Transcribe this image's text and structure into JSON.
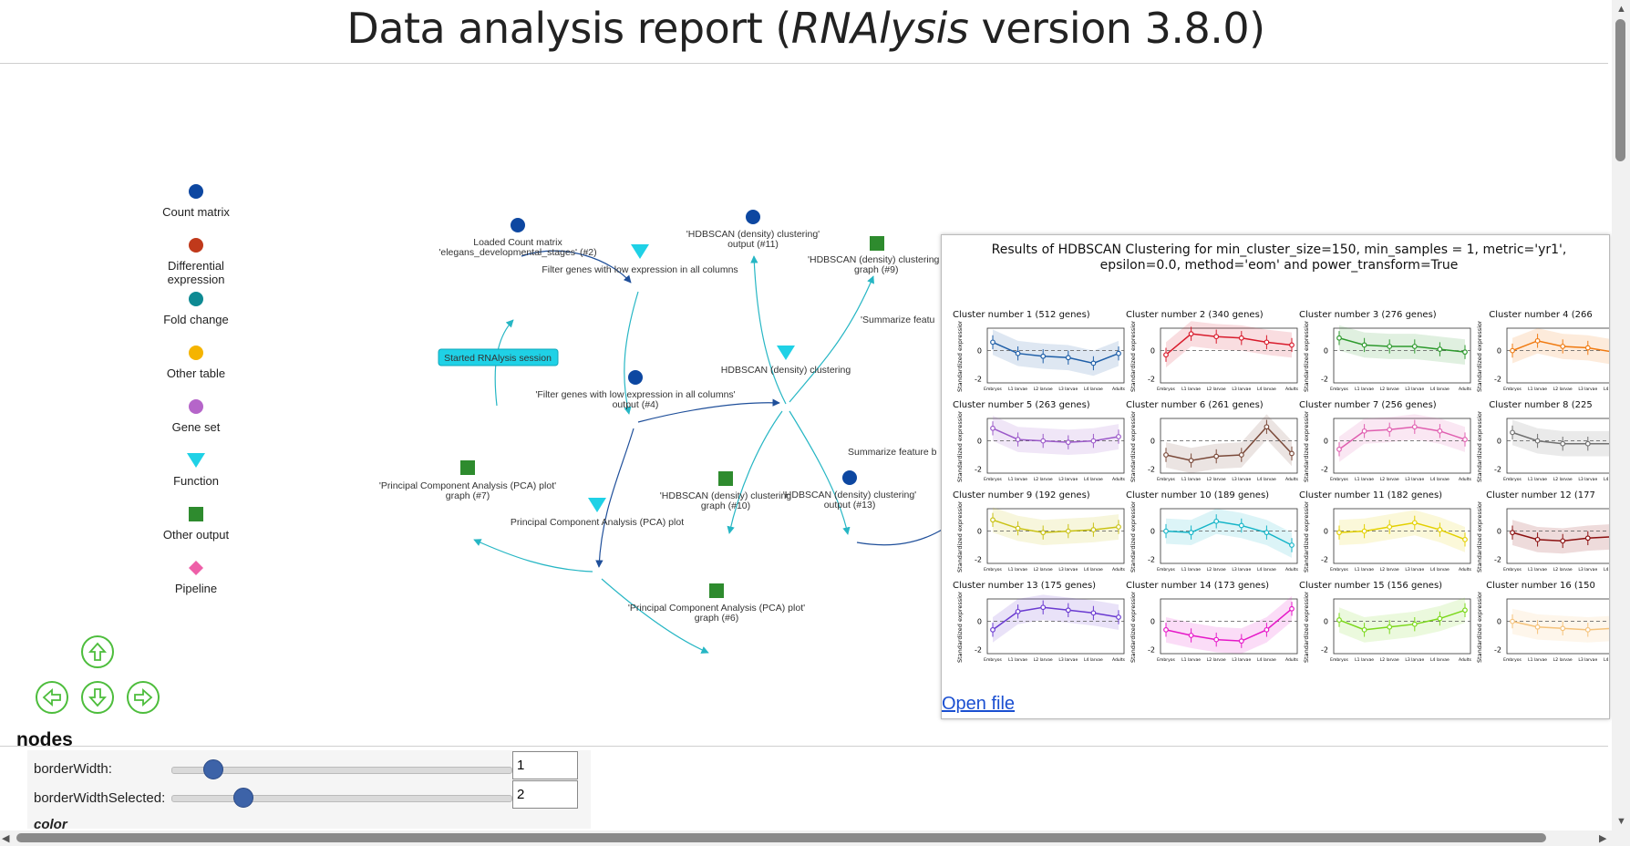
{
  "title": {
    "prefix": "Data analysis report (",
    "app": "RNAlysis",
    "suffix": " version 3.8.0)"
  },
  "legend": [
    {
      "label": "Count matrix",
      "shape": "circle",
      "color": "#0d47a1"
    },
    {
      "label": "Differential expression",
      "shape": "circle",
      "color": "#c0391b"
    },
    {
      "label": "Fold change",
      "shape": "circle",
      "color": "#0e8a93"
    },
    {
      "label": "Other table",
      "shape": "circle",
      "color": "#f5b400"
    },
    {
      "label": "Gene set",
      "shape": "circle",
      "color": "#b565c9"
    },
    {
      "label": "Function",
      "shape": "triangle",
      "color": "#1fd1e6"
    },
    {
      "label": "Other output",
      "shape": "square",
      "color": "#2e8b2e"
    },
    {
      "label": "Pipeline",
      "shape": "diamond",
      "color": "#ee5fa8"
    }
  ],
  "graph": {
    "session_node": "Started RNAlysis session",
    "nodes": [
      {
        "id": "n2",
        "line1": "Loaded Count matrix",
        "line2": "'elegans_developmental_stages' (#2)"
      },
      {
        "id": "f1",
        "line1": "Filter genes with low expression in all columns",
        "line2": ""
      },
      {
        "id": "n4",
        "line1": "'Filter genes with low expression in all columns'",
        "line2": "output (#4)"
      },
      {
        "id": "n11",
        "line1": "'HDBSCAN (density) clustering'",
        "line2": "output (#11)"
      },
      {
        "id": "n9",
        "line1": "'HDBSCAN (density) clustering",
        "line2": "graph (#9)"
      },
      {
        "id": "f2",
        "line1": "HDBSCAN (density) clustering",
        "line2": ""
      },
      {
        "id": "s1",
        "line1": "'Summarize featu",
        "line2": ""
      },
      {
        "id": "s2",
        "line1": "Summarize feature b",
        "line2": ""
      },
      {
        "id": "n7",
        "line1": "'Principal Component Analysis (PCA) plot'",
        "line2": "graph (#7)"
      },
      {
        "id": "f3",
        "line1": "Principal Component Analysis (PCA) plot",
        "line2": ""
      },
      {
        "id": "n10",
        "line1": "'HDBSCAN (density) clustering",
        "line2": "graph (#10)"
      },
      {
        "id": "n13",
        "line1": "'HDBSCAN (density) clustering'",
        "line2": "output (#13)"
      },
      {
        "id": "n6",
        "line1": "'Principal Component Analysis (PCA) plot'",
        "line2": "graph (#6)"
      }
    ]
  },
  "popup": {
    "title_line1": "Results of HDBSCAN Clustering for min_cluster_size=150, min_samples = 1, metric='yr1',",
    "title_line2": "epsilon=0.0, method='eom' and power_transform=True",
    "ylabel": "Standardized expression",
    "x_categories": [
      "Embryos",
      "L1 larvae",
      "L2 larvae",
      "L3 larvae",
      "L4 larvae",
      "Adults"
    ],
    "clusters": [
      {
        "title": "Cluster number 1 (512 genes)",
        "color": "#1f5fa8",
        "values": [
          0.6,
          -0.2,
          -0.4,
          -0.5,
          -0.9,
          -0.2
        ]
      },
      {
        "title": "Cluster number 2 (340 genes)",
        "color": "#d81b2c",
        "values": [
          -0.3,
          1.2,
          1.0,
          0.9,
          0.6,
          0.4
        ]
      },
      {
        "title": "Cluster number 3 (276 genes)",
        "color": "#2e9a2e",
        "values": [
          0.9,
          0.4,
          0.3,
          0.3,
          0.1,
          -0.1
        ]
      },
      {
        "title": "Cluster number 4 (266",
        "color": "#f07a10",
        "values": [
          0.0,
          0.7,
          0.3,
          0.2,
          -0.1,
          -0.1
        ]
      },
      {
        "title": "Cluster number 5 (263 genes)",
        "color": "#9b59c9",
        "values": [
          0.9,
          0.1,
          0.0,
          -0.1,
          0.0,
          0.3
        ]
      },
      {
        "title": "Cluster number 6 (261 genes)",
        "color": "#7b4a3a",
        "values": [
          -1.0,
          -1.4,
          -1.1,
          -1.0,
          1.0,
          -0.9
        ]
      },
      {
        "title": "Cluster number 7 (256 genes)",
        "color": "#e05fb0",
        "values": [
          -0.6,
          0.7,
          0.8,
          1.0,
          0.7,
          0.1
        ]
      },
      {
        "title": "Cluster number 8 (225",
        "color": "#707070",
        "values": [
          0.6,
          0.0,
          -0.2,
          -0.2,
          -0.2,
          -0.2
        ]
      },
      {
        "title": "Cluster number 9 (192 genes)",
        "color": "#c9c215",
        "values": [
          0.8,
          0.2,
          -0.1,
          0.0,
          0.1,
          0.3
        ]
      },
      {
        "title": "Cluster number 10 (189 genes)",
        "color": "#16b5c8",
        "values": [
          0.0,
          -0.1,
          0.7,
          0.4,
          -0.1,
          -1.0
        ]
      },
      {
        "title": "Cluster number 11 (182 genes)",
        "color": "#e3d000",
        "values": [
          -0.1,
          0.0,
          0.3,
          0.6,
          0.1,
          -0.6
        ]
      },
      {
        "title": "Cluster number 12 (177",
        "color": "#8b1010",
        "values": [
          -0.1,
          -0.6,
          -0.7,
          -0.5,
          -0.4,
          -0.4
        ]
      },
      {
        "title": "Cluster number 13 (175 genes)",
        "color": "#6a3ad1",
        "values": [
          -0.6,
          0.7,
          1.0,
          0.8,
          0.6,
          0.3
        ]
      },
      {
        "title": "Cluster number 14 (173 genes)",
        "color": "#e617c8",
        "values": [
          -0.6,
          -1.0,
          -1.3,
          -1.4,
          -0.6,
          0.9
        ]
      },
      {
        "title": "Cluster number 15 (156 genes)",
        "color": "#7bd81b",
        "values": [
          0.1,
          -0.6,
          -0.4,
          -0.2,
          0.2,
          0.8
        ]
      },
      {
        "title": "Cluster number 16 (150",
        "color": "#f5c27a",
        "values": [
          0.0,
          -0.4,
          -0.5,
          -0.6,
          -0.5,
          -0.5
        ]
      }
    ],
    "y_ticks": [
      "0",
      "-2"
    ],
    "open_file_label": "Open file"
  },
  "config": {
    "heading": "nodes",
    "rows": [
      {
        "label": "borderWidth:",
        "value": "1",
        "level": 0.12
      },
      {
        "label": "borderWidthSelected:",
        "value": "2",
        "level": 0.21
      }
    ],
    "next_label": "color"
  },
  "navigation": {
    "up": "up-arrow-icon",
    "left": "left-arrow-icon",
    "down": "down-arrow-icon",
    "right": "right-arrow-icon"
  }
}
